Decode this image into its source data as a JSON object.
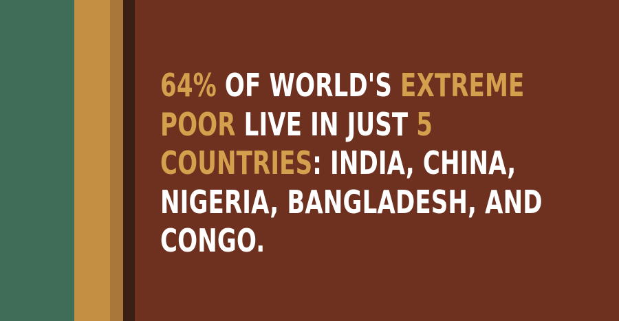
{
  "colors": {
    "background": "#6e3120",
    "stripe_green": "#3f6d58",
    "stripe_gold": "#c48e43",
    "stripe_tan": "#a9773a",
    "stripe_dark": "#3a1f17",
    "highlight_text": "#d4a04e",
    "body_text": "#ffffff"
  },
  "fact": {
    "line1": {
      "highlight_a": "64%",
      "text_a": " OF WORLD'S ",
      "highlight_b": "EXTREME"
    },
    "line2": {
      "highlight_a": "POOR",
      "text_a": " LIVE IN JUST ",
      "highlight_b": "5"
    },
    "line3": {
      "highlight_a": "COUNTRIES",
      "text_a": ": INDIA, CHINA,"
    },
    "line4": {
      "text_a": "NIGERIA, BANGLADESH, AND"
    },
    "line5": {
      "text_a": "CONGO."
    }
  }
}
